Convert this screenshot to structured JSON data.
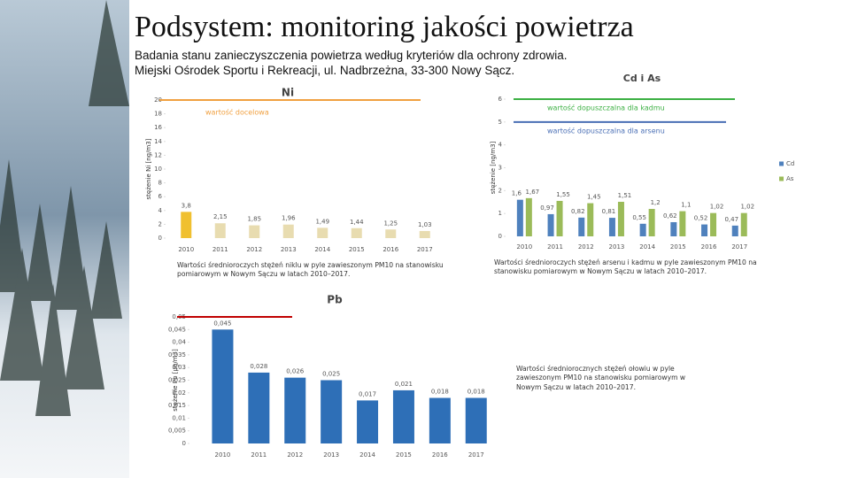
{
  "header": {
    "title": "Podsystem: monitoring jakości powietrza",
    "subtitle_lines": [
      "Badania stanu zanieczyszczenia powietrza według kryteriów dla ochrony zdrowia.",
      "Miejski Ośrodek Sportu i Rekreacji, ul. Nadbrzeżna, 33-300 Nowy Sącz."
    ]
  },
  "chart_data": [
    {
      "type": "bar",
      "title": "Ni",
      "y_label": "stężenie Ni [ng/m3]",
      "categories": [
        "2010",
        "2011",
        "2012",
        "2013",
        "2014",
        "2015",
        "2016",
        "2017"
      ],
      "values": [
        3.8,
        2.15,
        1.85,
        1.96,
        1.49,
        1.44,
        1.25,
        1.03
      ],
      "value_labels": [
        "3,8",
        "2,15",
        "1,85",
        "1,96",
        "1,49",
        "1,44",
        "1,25",
        "1,03"
      ],
      "colors": [
        "#f0c030",
        "#e8dcb0",
        "#e8dcb0",
        "#e8dcb0",
        "#e8dcb0",
        "#e8dcb0",
        "#e8dcb0",
        "#e8dcb0"
      ],
      "ylim": [
        0,
        20
      ],
      "yticks": [
        0,
        2,
        4,
        6,
        8,
        10,
        12,
        14,
        16,
        18,
        20
      ],
      "reference_lines": [
        {
          "label": "wartość docelowa",
          "value": 20,
          "color": "#f0a040"
        }
      ],
      "caption": "Wartości średnioroczych stężeń niklu w pyle zawieszonym PM10 na stanowisku pomiarowym w Nowym Sączu w latach 2010–2017."
    },
    {
      "type": "bar",
      "title": "Cd i As",
      "y_label": "stężenie [ng/m3]",
      "categories": [
        "2010",
        "2011",
        "2012",
        "2013",
        "2014",
        "2015",
        "2016",
        "2017"
      ],
      "series": [
        {
          "name": "Cd",
          "color": "#4f81bd",
          "values": [
            1.6,
            0.97,
            0.82,
            0.81,
            0.55,
            0.62,
            0.52,
            0.47
          ],
          "value_labels": [
            "1,6",
            "0,97",
            "0,82",
            "0,81",
            "0,55",
            "0,62",
            "0,52",
            "0,47"
          ]
        },
        {
          "name": "As",
          "color": "#9bbb59",
          "values": [
            1.67,
            1.55,
            1.45,
            1.51,
            1.2,
            1.1,
            1.02,
            1.02
          ],
          "value_labels": [
            "1,67",
            "1,55",
            "1,45",
            "1,51",
            "1,2",
            "1,1",
            "1,02",
            "1,02"
          ]
        }
      ],
      "ylim": [
        0,
        6
      ],
      "yticks": [
        0,
        1,
        2,
        3,
        4,
        5,
        6
      ],
      "legend": "right",
      "reference_lines": [
        {
          "label": "wartość dopuszczalna dla kadmu",
          "value": 6,
          "color": "#3cb043"
        },
        {
          "label": "wartość dopuszczalna dla arsenu",
          "value": 5,
          "color": "#4a6fb5"
        }
      ],
      "caption": "Wartości średnioroczych stężeń arsenu i kadmu w pyle zawieszonym PM10 na stanowisku pomiarowym w Nowym Sączu w latach 2010–2017."
    },
    {
      "type": "bar",
      "title": "Pb",
      "y_label": "stężenie Pb [µg/m3]",
      "categories": [
        "2010",
        "2011",
        "2012",
        "2013",
        "2014",
        "2015",
        "2016",
        "2017"
      ],
      "values": [
        0.045,
        0.028,
        0.026,
        0.025,
        0.017,
        0.021,
        0.018,
        0.018
      ],
      "value_labels": [
        "0,045",
        "0,028",
        "0,026",
        "0,025",
        "0,017",
        "0,021",
        "0,018",
        "0,018"
      ],
      "color": "#2e6fb7",
      "ylim": [
        0,
        0.05
      ],
      "yticks": [
        0,
        {
          "value": 0.005,
          "label": "0,005"
        },
        {
          "value": 0.01,
          "label": "0,01"
        },
        {
          "value": 0.015,
          "label": "0,015"
        },
        {
          "value": 0.02,
          "label": "0,02"
        },
        {
          "value": 0.025,
          "label": "0,025"
        },
        {
          "value": 0.03,
          "label": "0,03"
        },
        {
          "value": 0.035,
          "label": "0,035"
        },
        {
          "value": 0.04,
          "label": "0,04"
        },
        {
          "value": 0.045,
          "label": "0,045"
        },
        {
          "value": 0.05,
          "label": "0,05"
        }
      ],
      "reference_lines": [
        {
          "value": 0.05,
          "color": "#c00000"
        }
      ],
      "caption": "Wartości średniorocznych stężeń ołowiu w pyle zawieszonym PM10 na stanowisku pomiarowym w Nowym Sączu w latach 2010–2017."
    }
  ]
}
